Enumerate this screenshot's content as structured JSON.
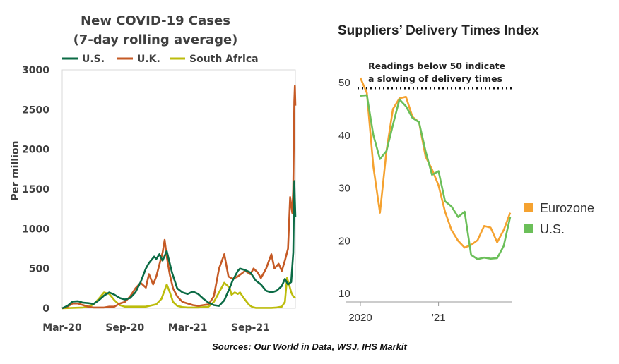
{
  "source_note": "Sources: Our World in Data, WSJ, IHS Markit",
  "colors": {
    "us": "#0b6b45",
    "uk": "#c55a25",
    "south_africa": "#bcbc0c",
    "eurozone": "#f5a230",
    "us_index": "#6bbf59",
    "dotted": "#111111"
  },
  "chart_data": [
    {
      "type": "line",
      "title": "New COVID-19 Cases",
      "subtitle": "(7-day rolling average)",
      "xlabel": "",
      "ylabel": "Per million",
      "ylim": [
        0,
        3000
      ],
      "yticks": [
        "0",
        "500",
        "1000",
        "1500",
        "2000",
        "2500",
        "3000"
      ],
      "ytick_values": [
        0,
        500,
        1000,
        1500,
        2000,
        2500,
        3000
      ],
      "xticks": [
        "Mar-20",
        "Sep-20",
        "Mar-21",
        "Sep-21"
      ],
      "xtick_values": [
        0,
        6,
        12,
        18
      ],
      "x_unit": "months since Mar-20",
      "xlim": [
        0,
        22.3
      ],
      "legend": [
        "U.S.",
        "U.K.",
        "South Africa"
      ],
      "series": [
        {
          "name": "U.S.",
          "color_key": "us",
          "x": [
            0,
            0.5,
            1,
            1.5,
            2,
            2.5,
            3,
            3.5,
            4,
            4.5,
            5,
            5.5,
            6,
            6.5,
            7,
            7.5,
            8,
            8.3,
            8.8,
            9,
            9.3,
            9.6,
            10,
            10.5,
            11,
            11.5,
            12,
            12.5,
            13,
            13.5,
            14,
            14.5,
            15,
            15.5,
            16,
            16.3,
            16.8,
            17,
            17.5,
            18,
            18.5,
            19,
            19.5,
            20,
            20.5,
            21,
            21.3,
            21.6,
            21.9,
            22.1,
            22.2,
            22.3
          ],
          "values": [
            0,
            30,
            85,
            90,
            70,
            65,
            55,
            100,
            160,
            200,
            170,
            130,
            110,
            130,
            200,
            330,
            500,
            570,
            650,
            620,
            680,
            600,
            720,
            450,
            250,
            200,
            180,
            210,
            180,
            120,
            70,
            40,
            30,
            100,
            250,
            350,
            470,
            500,
            480,
            450,
            350,
            300,
            220,
            200,
            220,
            280,
            370,
            300,
            330,
            700,
            1600,
            1150
          ]
        },
        {
          "name": "U.K.",
          "color_key": "uk",
          "x": [
            0,
            0.5,
            1,
            1.5,
            2,
            2.5,
            3,
            3.5,
            4,
            4.5,
            5,
            5.5,
            6,
            6.5,
            7,
            7.5,
            8,
            8.3,
            8.7,
            9,
            9.3,
            9.6,
            9.8,
            10,
            10.3,
            10.6,
            11,
            11.5,
            12,
            12.5,
            13,
            13.5,
            14,
            14.5,
            15,
            15.5,
            15.9,
            16.3,
            16.8,
            17.2,
            17.5,
            18,
            18.3,
            18.7,
            19,
            19.5,
            20,
            20.3,
            20.7,
            21,
            21.3,
            21.6,
            21.8,
            22,
            22.1,
            22.2,
            22.25,
            22.3
          ],
          "values": [
            0,
            20,
            60,
            60,
            40,
            20,
            10,
            10,
            10,
            20,
            20,
            60,
            80,
            150,
            250,
            320,
            260,
            430,
            300,
            400,
            550,
            700,
            860,
            650,
            420,
            250,
            150,
            80,
            60,
            40,
            30,
            40,
            50,
            150,
            500,
            680,
            400,
            370,
            400,
            440,
            470,
            430,
            500,
            450,
            380,
            500,
            680,
            500,
            560,
            470,
            600,
            750,
            1400,
            1200,
            1500,
            2600,
            2800,
            2550
          ]
        },
        {
          "name": "South Africa",
          "color_key": "south_africa",
          "x": [
            0,
            1,
            2,
            2.5,
            3,
            3.5,
            4,
            4.5,
            5,
            5.5,
            6,
            7,
            8,
            9,
            9.5,
            10,
            10.3,
            10.6,
            11,
            11.5,
            12,
            13,
            14,
            14.5,
            15,
            15.5,
            16,
            16.2,
            16.5,
            16.8,
            17,
            17.3,
            17.6,
            17.9,
            18.2,
            18.5,
            19,
            19.5,
            20,
            20.5,
            21,
            21.3,
            21.5,
            21.7,
            21.9,
            22.1,
            22.3
          ],
          "values": [
            0,
            5,
            10,
            20,
            50,
            120,
            200,
            180,
            100,
            40,
            20,
            20,
            20,
            50,
            120,
            300,
            200,
            80,
            30,
            15,
            10,
            10,
            20,
            80,
            200,
            320,
            260,
            170,
            200,
            180,
            200,
            140,
            90,
            40,
            15,
            5,
            5,
            5,
            5,
            10,
            20,
            80,
            380,
            300,
            200,
            150,
            130
          ]
        }
      ]
    },
    {
      "type": "line",
      "title": "Suppliers’ Delivery Times Index",
      "xlabel": "",
      "ylabel": "",
      "ylim": [
        10,
        50
      ],
      "yticks": [
        "10",
        "20",
        "30",
        "40",
        "50"
      ],
      "ytick_values": [
        10,
        20,
        30,
        40,
        50
      ],
      "xticks": [
        "2020",
        "’21"
      ],
      "xtick_values": [
        0,
        12
      ],
      "x_unit": "months since Jan 2020",
      "xlim": [
        0,
        23
      ],
      "reference_line": {
        "value": 50,
        "style": "dotted"
      },
      "annotation": [
        "Readings below 50 indicate",
        "a slowing of delivery times"
      ],
      "legend": [
        "Eurozone",
        "U.S."
      ],
      "series": [
        {
          "name": "Eurozone",
          "color_key": "eurozone",
          "x": [
            0,
            1,
            2,
            3,
            4,
            5,
            6,
            7,
            8,
            9,
            10,
            11,
            12,
            13,
            14,
            15,
            16,
            17,
            18,
            19,
            20,
            21,
            22,
            23
          ],
          "values": [
            50.9,
            48,
            34,
            25.3,
            37,
            45,
            47,
            47.3,
            43.5,
            42.5,
            36,
            33.5,
            30.5,
            25.5,
            22,
            20,
            18.7,
            19.2,
            20.1,
            22.8,
            22.5,
            19.7,
            22,
            25.3
          ]
        },
        {
          "name": "U.S.",
          "color_key": "us_index",
          "x": [
            0,
            1,
            2,
            3,
            4,
            5,
            6,
            7,
            8,
            9,
            10,
            11,
            12,
            13,
            14,
            15,
            16,
            17,
            18,
            19,
            20,
            21,
            22,
            23
          ],
          "values": [
            47.5,
            47.6,
            40,
            35.5,
            37,
            42,
            46.8,
            45.5,
            43.3,
            42.5,
            37,
            32.5,
            33.2,
            27.5,
            26.5,
            24.5,
            25.5,
            17.3,
            16.5,
            16.8,
            16.6,
            16.7,
            19,
            24.5
          ]
        }
      ]
    }
  ]
}
